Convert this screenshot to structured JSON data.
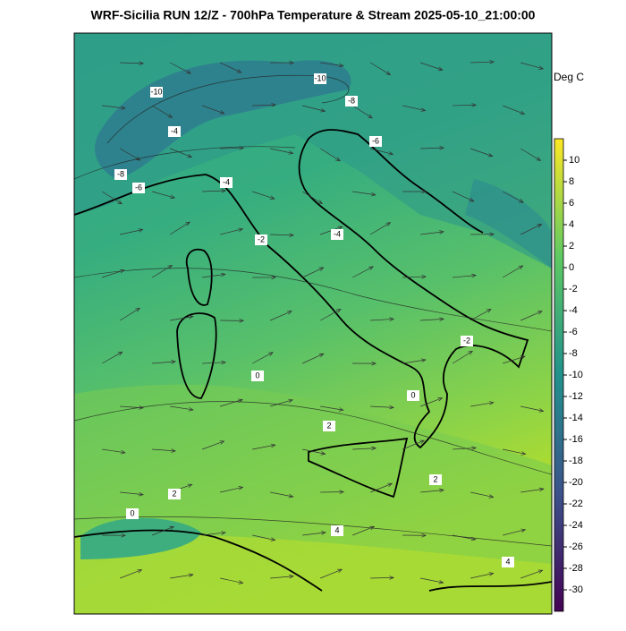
{
  "title": "WRF-Sicilia RUN 12/Z - 700hPa Temperature & Stream 2025-05-10_21:00:00",
  "colorbar": {
    "label": "Deg C",
    "range": [
      -32,
      12
    ],
    "ticks": [
      10,
      8,
      6,
      4,
      2,
      0,
      -2,
      -4,
      -6,
      -8,
      -10,
      -12,
      -14,
      -16,
      -18,
      -20,
      -22,
      -24,
      -26,
      -28,
      -30
    ]
  },
  "contour_labels": [
    -10,
    -10,
    -8,
    -4,
    -8,
    -6,
    -4,
    -6,
    -2,
    -4,
    -2,
    0,
    0,
    2,
    2,
    0,
    2,
    4,
    4
  ]
}
